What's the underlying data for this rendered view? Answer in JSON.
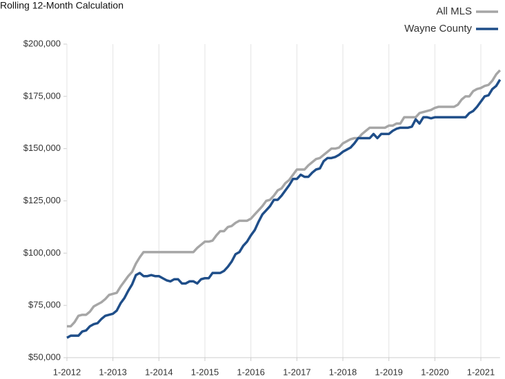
{
  "chart_data": {
    "type": "line",
    "title": "Rolling 12-Month Calculation",
    "categories": [
      "1-2012",
      null,
      null,
      null,
      null,
      null,
      null,
      null,
      null,
      null,
      null,
      null,
      "1-2013",
      null,
      null,
      null,
      null,
      null,
      null,
      null,
      null,
      null,
      null,
      null,
      "1-2014",
      null,
      null,
      null,
      null,
      null,
      null,
      null,
      null,
      null,
      null,
      null,
      "1-2015",
      null,
      null,
      null,
      null,
      null,
      null,
      null,
      null,
      null,
      null,
      null,
      "1-2016",
      null,
      null,
      null,
      null,
      null,
      null,
      null,
      null,
      null,
      null,
      null,
      "1-2017",
      null,
      null,
      null,
      null,
      null,
      null,
      null,
      null,
      null,
      null,
      null,
      "1-2018",
      null,
      null,
      null,
      null,
      null,
      null,
      null,
      null,
      null,
      null,
      null,
      "1-2019",
      null,
      null,
      null,
      null,
      null,
      null,
      null,
      null,
      null,
      null,
      null,
      "1-2020",
      null,
      null,
      null,
      null,
      null,
      null,
      null,
      null,
      null,
      null,
      null,
      "1-2021",
      null,
      null,
      null,
      null,
      null
    ],
    "series": [
      {
        "name": "All MLS",
        "color": "#a6a6a6",
        "values": [
          65000,
          65000,
          67000,
          70000,
          70500,
          70500,
          72000,
          74500,
          75500,
          76500,
          78000,
          80000,
          80500,
          81000,
          84000,
          86500,
          89000,
          91000,
          95000,
          98000,
          100500,
          100500,
          100500,
          100500,
          100500,
          100500,
          100500,
          100500,
          100500,
          100500,
          100500,
          100500,
          100500,
          100500,
          102500,
          104000,
          105500,
          105500,
          106000,
          108500,
          110500,
          110500,
          112500,
          113000,
          114500,
          115500,
          115500,
          115500,
          116500,
          118500,
          120500,
          122500,
          125000,
          125500,
          127500,
          130000,
          131000,
          133500,
          135000,
          137500,
          140000,
          140000,
          140000,
          142000,
          143500,
          145000,
          145500,
          147000,
          148500,
          150000,
          150000,
          150500,
          152500,
          153500,
          154500,
          155000,
          155000,
          157000,
          158500,
          160000,
          160000,
          160000,
          160000,
          160000,
          161000,
          161000,
          162000,
          162000,
          165000,
          165000,
          165000,
          165000,
          167000,
          167500,
          168000,
          168500,
          169500,
          170000,
          170000,
          170000,
          170000,
          170000,
          171000,
          173500,
          175000,
          175000,
          177500,
          178500,
          179000,
          180000,
          180500,
          182500,
          185500,
          187500
        ]
      },
      {
        "name": "Wayne County",
        "color": "#1f4e89",
        "values": [
          59500,
          60500,
          60500,
          60500,
          62500,
          63000,
          65000,
          66000,
          66500,
          68500,
          70000,
          70500,
          71000,
          72500,
          76000,
          78500,
          82000,
          85000,
          89500,
          90500,
          89000,
          89000,
          89500,
          89000,
          89000,
          88000,
          87000,
          86500,
          87500,
          87500,
          85500,
          85500,
          86500,
          86500,
          85500,
          87500,
          88000,
          88000,
          90500,
          90500,
          90500,
          91500,
          93500,
          96000,
          99500,
          100500,
          103500,
          105500,
          108500,
          111000,
          115000,
          118500,
          120500,
          122500,
          125500,
          125500,
          127500,
          130000,
          132500,
          135500,
          135500,
          137500,
          136500,
          136500,
          138500,
          140000,
          140500,
          144000,
          145500,
          145500,
          146000,
          147000,
          148500,
          149500,
          150500,
          152500,
          155000,
          155000,
          155000,
          155000,
          157000,
          155000,
          157000,
          157000,
          157000,
          158500,
          159500,
          160000,
          160000,
          160000,
          160500,
          164000,
          162000,
          165000,
          165000,
          164500,
          165000,
          165000,
          165000,
          165000,
          165000,
          165000,
          165000,
          165000,
          165000,
          167000,
          168000,
          170000,
          172500,
          175000,
          175500,
          178500,
          180000,
          183000
        ]
      }
    ],
    "ylim": [
      50000,
      200000
    ],
    "yticks": [
      {
        "value": 50000,
        "label": "$50,000"
      },
      {
        "value": 75000,
        "label": "$75,000"
      },
      {
        "value": 100000,
        "label": "$100,000"
      },
      {
        "value": 125000,
        "label": "$125,000"
      },
      {
        "value": 150000,
        "label": "$150,000"
      },
      {
        "value": 175000,
        "label": "$175,000"
      },
      {
        "value": 200000,
        "label": "$200,000"
      }
    ],
    "grid": true,
    "legend": "top-right"
  }
}
